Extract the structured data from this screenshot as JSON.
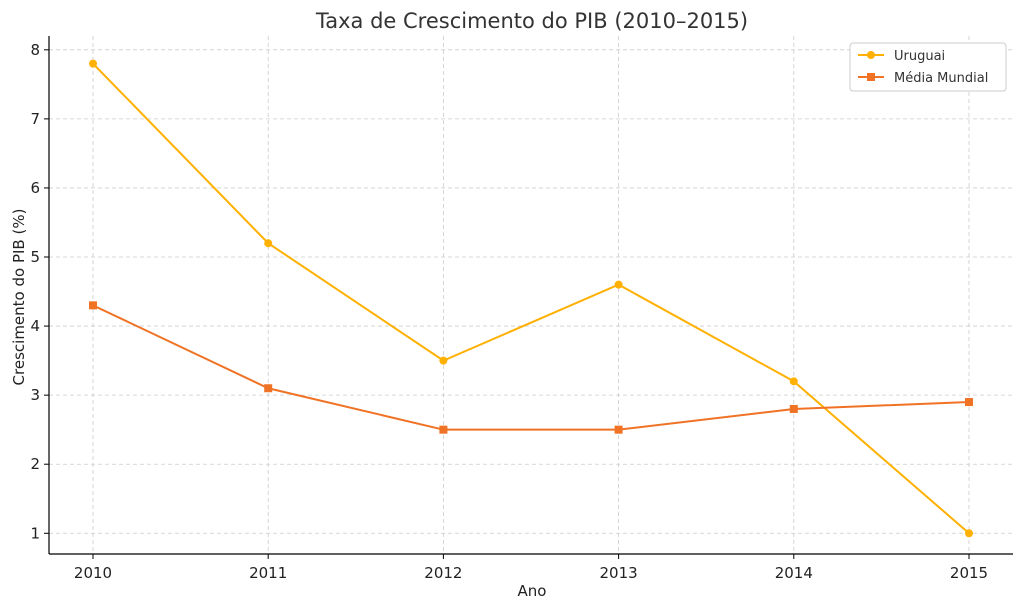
{
  "chart_data": {
    "type": "line",
    "title": "Taxa de Crescimento do PIB (2010–2015)",
    "xlabel": "Ano",
    "ylabel": "Crescimento do PIB (%)",
    "categories": [
      "2010",
      "2011",
      "2012",
      "2013",
      "2014",
      "2015"
    ],
    "ylim": [
      0.7,
      8.2
    ],
    "yticks": [
      1,
      2,
      3,
      4,
      5,
      6,
      7,
      8
    ],
    "grid": true,
    "legend_position": "top-right",
    "series": [
      {
        "name": "Uruguai",
        "values": [
          7.8,
          5.2,
          3.5,
          4.6,
          3.2,
          1.0
        ],
        "color": "#FFB000",
        "marker": "circle"
      },
      {
        "name": "Média Mundial",
        "values": [
          4.3,
          3.1,
          2.5,
          2.5,
          2.8,
          2.9
        ],
        "color": "#F07224",
        "marker": "square"
      }
    ]
  }
}
